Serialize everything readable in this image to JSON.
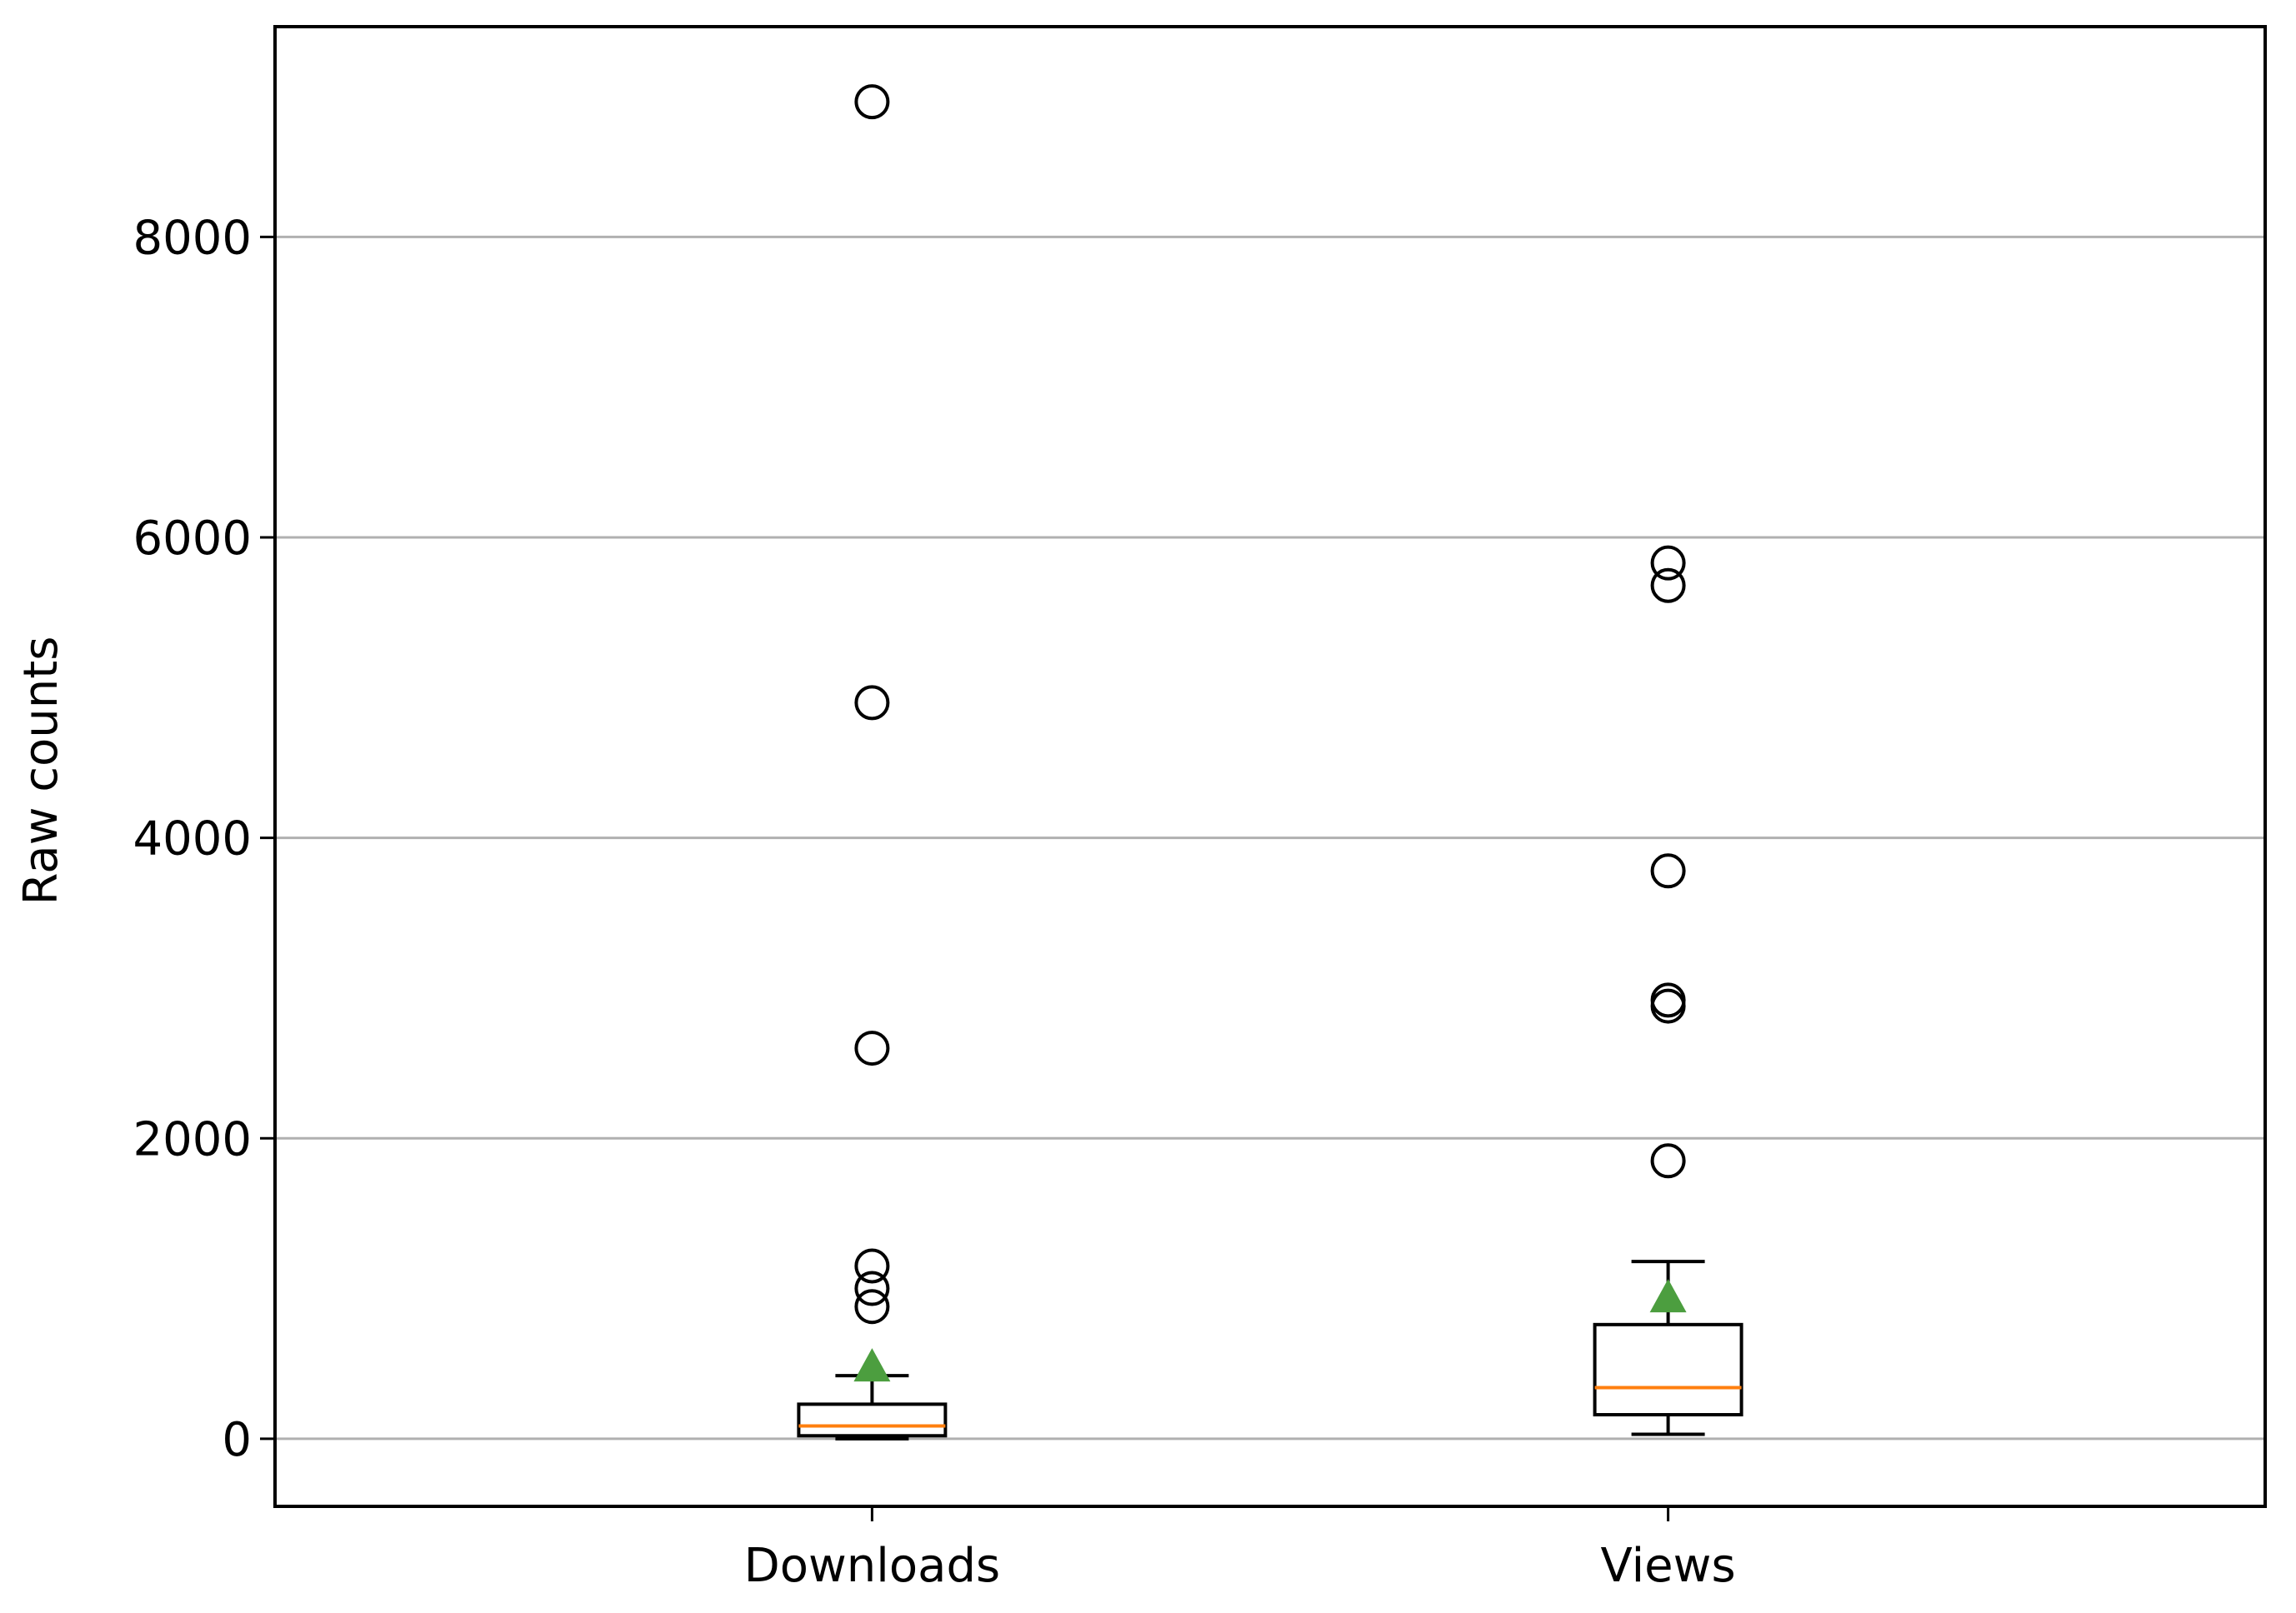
{
  "chart_data": {
    "type": "box",
    "title": "",
    "xlabel": "",
    "ylabel": "Raw counts",
    "ylim": [
      -450,
      9400
    ],
    "yticks": [
      0,
      2000,
      4000,
      6000,
      8000
    ],
    "y_grid": true,
    "categories": [
      "Downloads",
      "Views"
    ],
    "series": [
      {
        "category": "Downloads",
        "whisker_low": 0,
        "q1": 20,
        "median": 85,
        "q3": 230,
        "whisker_high": 420,
        "mean": 470,
        "outliers": [
          8900,
          4900,
          2600,
          1150,
          1000,
          880
        ]
      },
      {
        "category": "Views",
        "whisker_low": 30,
        "q1": 160,
        "median": 340,
        "q3": 760,
        "whisker_high": 1180,
        "mean": 930,
        "outliers": [
          5830,
          5680,
          3780,
          2920,
          2880,
          1850
        ]
      }
    ],
    "colors": {
      "box": "#000000",
      "median": "#ff7f0e",
      "mean": "#4c9e3f",
      "grid": "#b0b0b0"
    }
  }
}
